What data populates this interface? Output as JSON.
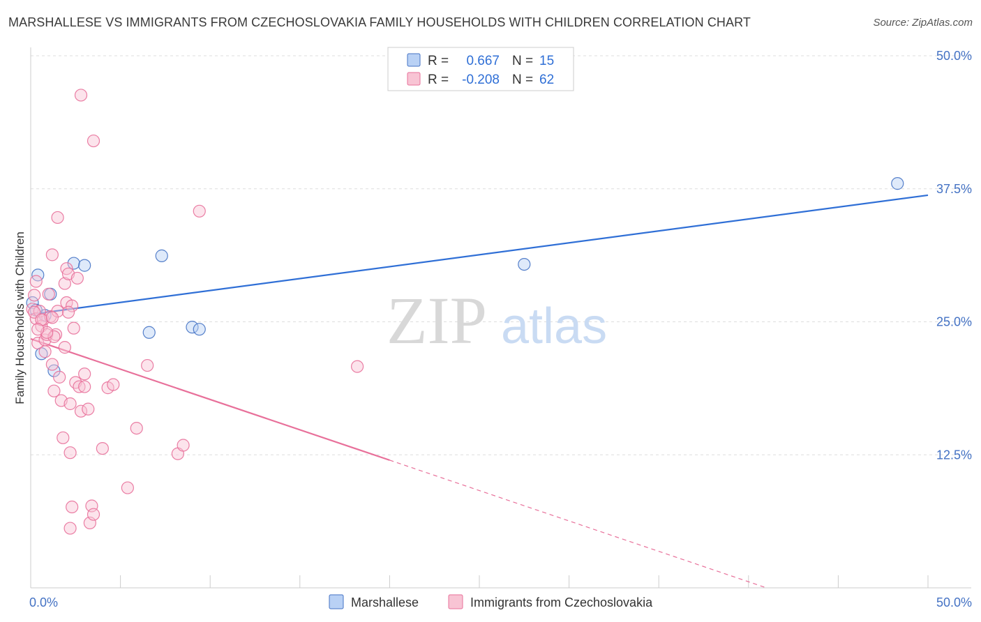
{
  "title": "MARSHALLESE VS IMMIGRANTS FROM CZECHOSLOVAKIA FAMILY HOUSEHOLDS WITH CHILDREN CORRELATION CHART",
  "source": "Source: ZipAtlas.com",
  "watermark": {
    "zip": "ZIP",
    "atlas": "atlas"
  },
  "colors": {
    "blue": "#4472c4",
    "blue_fill": "#b9d1f5",
    "blue_line": "#2f6fd6",
    "pink": "#e8709a",
    "pink_fill": "#f8c4d4",
    "grid": "#dddddd"
  },
  "legend": {
    "rows": [
      {
        "r_label": "R =",
        "r_value": "0.667",
        "n_label": "N =",
        "n_value": "15",
        "series": "blue"
      },
      {
        "r_label": "R =",
        "r_value": "-0.208",
        "n_label": "N =",
        "n_value": "62",
        "series": "pink"
      }
    ]
  },
  "bottom_legend": [
    "Marshallese",
    "Immigrants from Czechoslovakia"
  ],
  "chart_data": {
    "type": "scatter",
    "title": "MARSHALLESE VS IMMIGRANTS FROM CZECHOSLOVAKIA FAMILY HOUSEHOLDS WITH CHILDREN CORRELATION CHART",
    "xlabel": "",
    "ylabel": "Family Households with Children",
    "xlim": [
      0,
      50
    ],
    "ylim": [
      0,
      50
    ],
    "x_tick_labels": [
      {
        "value": 0,
        "label": "0.0%"
      },
      {
        "value": 50,
        "label": "50.0%"
      }
    ],
    "y_tick_labels": [
      {
        "value": 12.5,
        "label": "12.5%"
      },
      {
        "value": 25,
        "label": "25.0%"
      },
      {
        "value": 37.5,
        "label": "37.5%"
      },
      {
        "value": 50,
        "label": "50.0%"
      }
    ],
    "series": [
      {
        "name": "Marshallese",
        "color": "blue",
        "points": [
          [
            0.1,
            26.8
          ],
          [
            0.4,
            29.4
          ],
          [
            0.6,
            22.0
          ],
          [
            0.8,
            25.6
          ],
          [
            1.1,
            27.6
          ],
          [
            1.3,
            20.4
          ],
          [
            2.4,
            30.5
          ],
          [
            3.0,
            30.3
          ],
          [
            6.6,
            24.0
          ],
          [
            7.3,
            31.2
          ],
          [
            9.0,
            24.5
          ],
          [
            9.4,
            24.3
          ],
          [
            27.5,
            30.4
          ],
          [
            48.3,
            38.0
          ],
          [
            0.3,
            26.1
          ]
        ],
        "trend": {
          "x0": 0,
          "y0": 25.7,
          "x1": 50,
          "y1": 36.9,
          "dashed_from": null
        }
      },
      {
        "name": "Immigrants from Czechoslovakia",
        "color": "pink",
        "points": [
          [
            0.1,
            26.2
          ],
          [
            0.2,
            27.5
          ],
          [
            0.3,
            28.8
          ],
          [
            0.3,
            25.3
          ],
          [
            0.4,
            23.0
          ],
          [
            0.5,
            26.0
          ],
          [
            0.6,
            24.6
          ],
          [
            0.7,
            25.2
          ],
          [
            0.8,
            22.2
          ],
          [
            0.8,
            23.3
          ],
          [
            0.9,
            23.8
          ],
          [
            1.0,
            27.6
          ],
          [
            1.1,
            25.5
          ],
          [
            1.2,
            31.3
          ],
          [
            1.2,
            21.0
          ],
          [
            1.3,
            18.5
          ],
          [
            1.4,
            23.8
          ],
          [
            1.5,
            34.8
          ],
          [
            1.5,
            26.0
          ],
          [
            1.6,
            19.8
          ],
          [
            1.7,
            17.6
          ],
          [
            1.8,
            14.1
          ],
          [
            1.9,
            22.6
          ],
          [
            1.9,
            28.6
          ],
          [
            2.0,
            26.8
          ],
          [
            2.0,
            30.0
          ],
          [
            2.1,
            29.5
          ],
          [
            2.2,
            17.3
          ],
          [
            2.2,
            12.7
          ],
          [
            2.3,
            26.5
          ],
          [
            2.4,
            24.4
          ],
          [
            2.5,
            19.3
          ],
          [
            2.6,
            29.1
          ],
          [
            2.7,
            18.9
          ],
          [
            2.8,
            16.6
          ],
          [
            2.8,
            46.3
          ],
          [
            3.0,
            20.1
          ],
          [
            3.2,
            16.8
          ],
          [
            3.3,
            6.1
          ],
          [
            3.4,
            7.7
          ],
          [
            3.5,
            6.9
          ],
          [
            3.5,
            42.0
          ],
          [
            4.0,
            13.1
          ],
          [
            4.3,
            18.8
          ],
          [
            4.6,
            19.1
          ],
          [
            5.4,
            9.4
          ],
          [
            5.9,
            15.0
          ],
          [
            6.5,
            20.9
          ],
          [
            8.2,
            12.6
          ],
          [
            8.5,
            13.4
          ],
          [
            9.4,
            35.4
          ],
          [
            18.2,
            20.8
          ],
          [
            0.2,
            25.9
          ],
          [
            0.6,
            25.2
          ],
          [
            1.2,
            25.4
          ],
          [
            2.1,
            25.9
          ],
          [
            3.0,
            18.9
          ],
          [
            2.2,
            5.6
          ],
          [
            2.3,
            7.6
          ],
          [
            1.3,
            23.6
          ],
          [
            0.9,
            24.0
          ],
          [
            0.4,
            24.3
          ]
        ],
        "trend": {
          "x0": 0,
          "y0": 23.4,
          "x1": 20,
          "y1": 12.0,
          "dashed_to_x": 41,
          "dashed_to_y": 0
        }
      }
    ]
  }
}
